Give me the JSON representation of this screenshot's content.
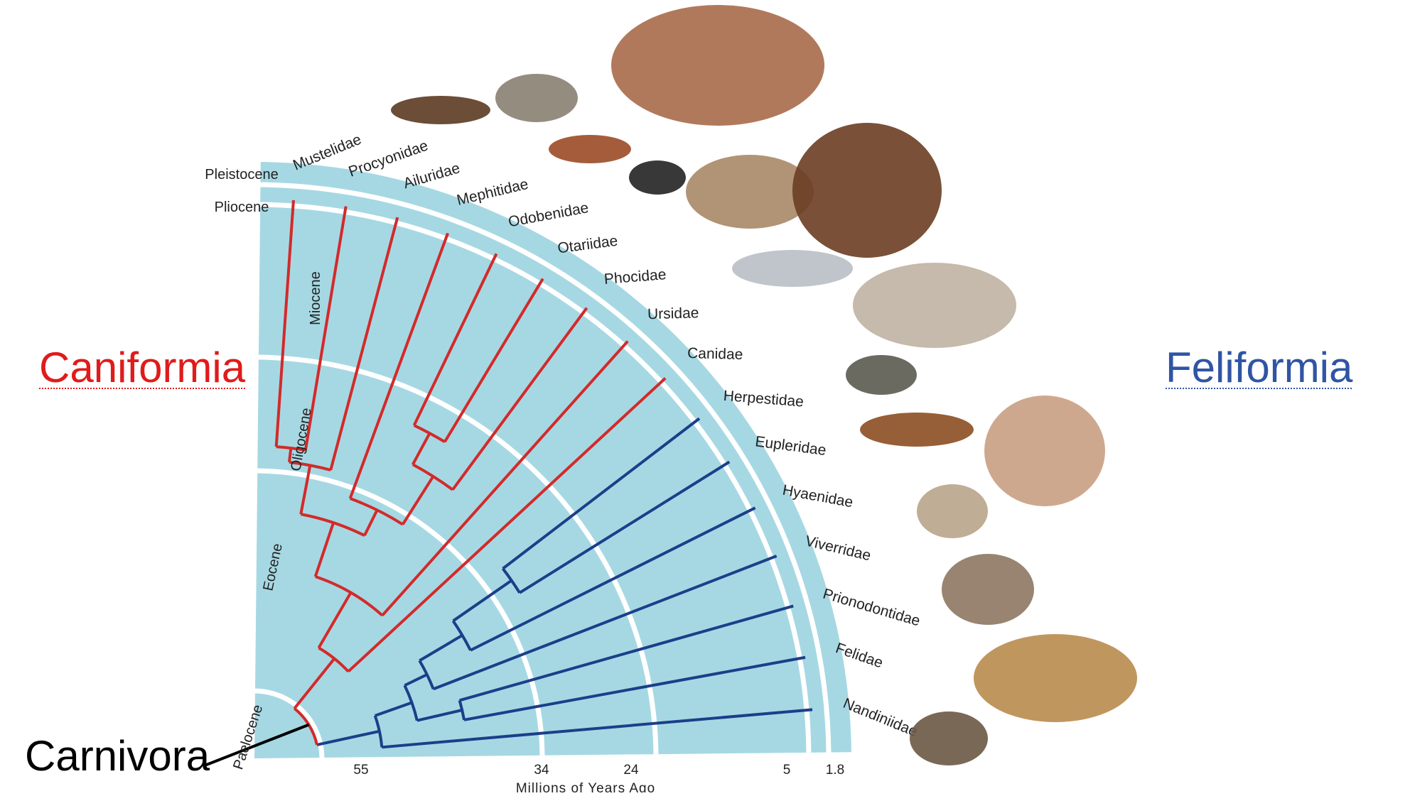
{
  "colors": {
    "background": "#ffffff",
    "fan": "#a6d8e3",
    "era_band": "#ffffff",
    "caniformia": "#d32a2a",
    "feliformia": "#1b3f8a",
    "root": "#000000",
    "label": "#222222",
    "caniformia_title": "#e01b1b",
    "feliformia_title": "#2f55a4"
  },
  "titles": {
    "caniformia": "Caniformia",
    "feliformia": "Feliformia",
    "carnivora": "Carnivora"
  },
  "epochs": [
    "Pleistocene",
    "Pliocene",
    "Miocene",
    "Oligocene",
    "Eocene",
    "Paelocene"
  ],
  "time_axis": {
    "label": "Millions of Years Ago",
    "ticks": [
      "55",
      "34",
      "24",
      "5",
      "1.8"
    ]
  },
  "families": [
    {
      "name": "Mustelidae",
      "clade": "caniformia",
      "animal": "stoat-illustration"
    },
    {
      "name": "Procyonidae",
      "clade": "caniformia",
      "animal": "raccoon-illustration"
    },
    {
      "name": "Ailuridae",
      "clade": "caniformia",
      "animal": "red-panda-illustration"
    },
    {
      "name": "Mephitidae",
      "clade": "caniformia",
      "animal": "skunk-illustration"
    },
    {
      "name": "Odobenidae",
      "clade": "caniformia",
      "animal": "walrus-illustration"
    },
    {
      "name": "Otariidae",
      "clade": "caniformia",
      "animal": "sea-lion-illustration"
    },
    {
      "name": "Phocidae",
      "clade": "caniformia",
      "animal": "seal-illustration"
    },
    {
      "name": "Ursidae",
      "clade": "caniformia",
      "animal": "bear-illustration"
    },
    {
      "name": "Canidae",
      "clade": "caniformia",
      "animal": "wolf-illustration"
    },
    {
      "name": "Herpestidae",
      "clade": "feliformia",
      "animal": "mongoose-illustration"
    },
    {
      "name": "Eupleridae",
      "clade": "feliformia",
      "animal": "fossa-illustration"
    },
    {
      "name": "Hyaenidae",
      "clade": "feliformia",
      "animal": "hyena-illustration"
    },
    {
      "name": "Viverridae",
      "clade": "feliformia",
      "animal": "civet-illustration"
    },
    {
      "name": "Prionodontidae",
      "clade": "feliformia",
      "animal": "linsang-illustration"
    },
    {
      "name": "Felidae",
      "clade": "feliformia",
      "animal": "jaguar-illustration"
    },
    {
      "name": "Nandiniidae",
      "clade": "feliformia",
      "animal": "palm-civet-illustration"
    }
  ]
}
